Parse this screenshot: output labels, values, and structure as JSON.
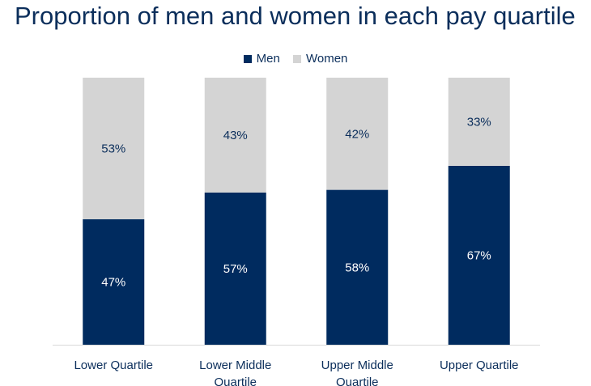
{
  "colors": {
    "men": "#002b5f",
    "women": "#d4d4d4",
    "text": "#0b2e5b"
  },
  "chart_data": {
    "type": "bar",
    "stacked": true,
    "percent_stacked": true,
    "title": "Proportion of men and women in each pay quartile",
    "legend_position": "top",
    "grid": false,
    "ylim": [
      0,
      100
    ],
    "categories": [
      [
        "Lower Quartile"
      ],
      [
        "Lower Middle",
        "Quartile"
      ],
      [
        "Upper Middle",
        "Quartile"
      ],
      [
        "Upper Quartile"
      ]
    ],
    "series": [
      {
        "name": "Men",
        "color": "#002b5f",
        "values": [
          47,
          57,
          58,
          67
        ],
        "labels": [
          "47%",
          "57%",
          "58%",
          "67%"
        ]
      },
      {
        "name": "Women",
        "color": "#d4d4d4",
        "values": [
          53,
          43,
          42,
          33
        ],
        "labels": [
          "53%",
          "43%",
          "42%",
          "33%"
        ]
      }
    ]
  }
}
